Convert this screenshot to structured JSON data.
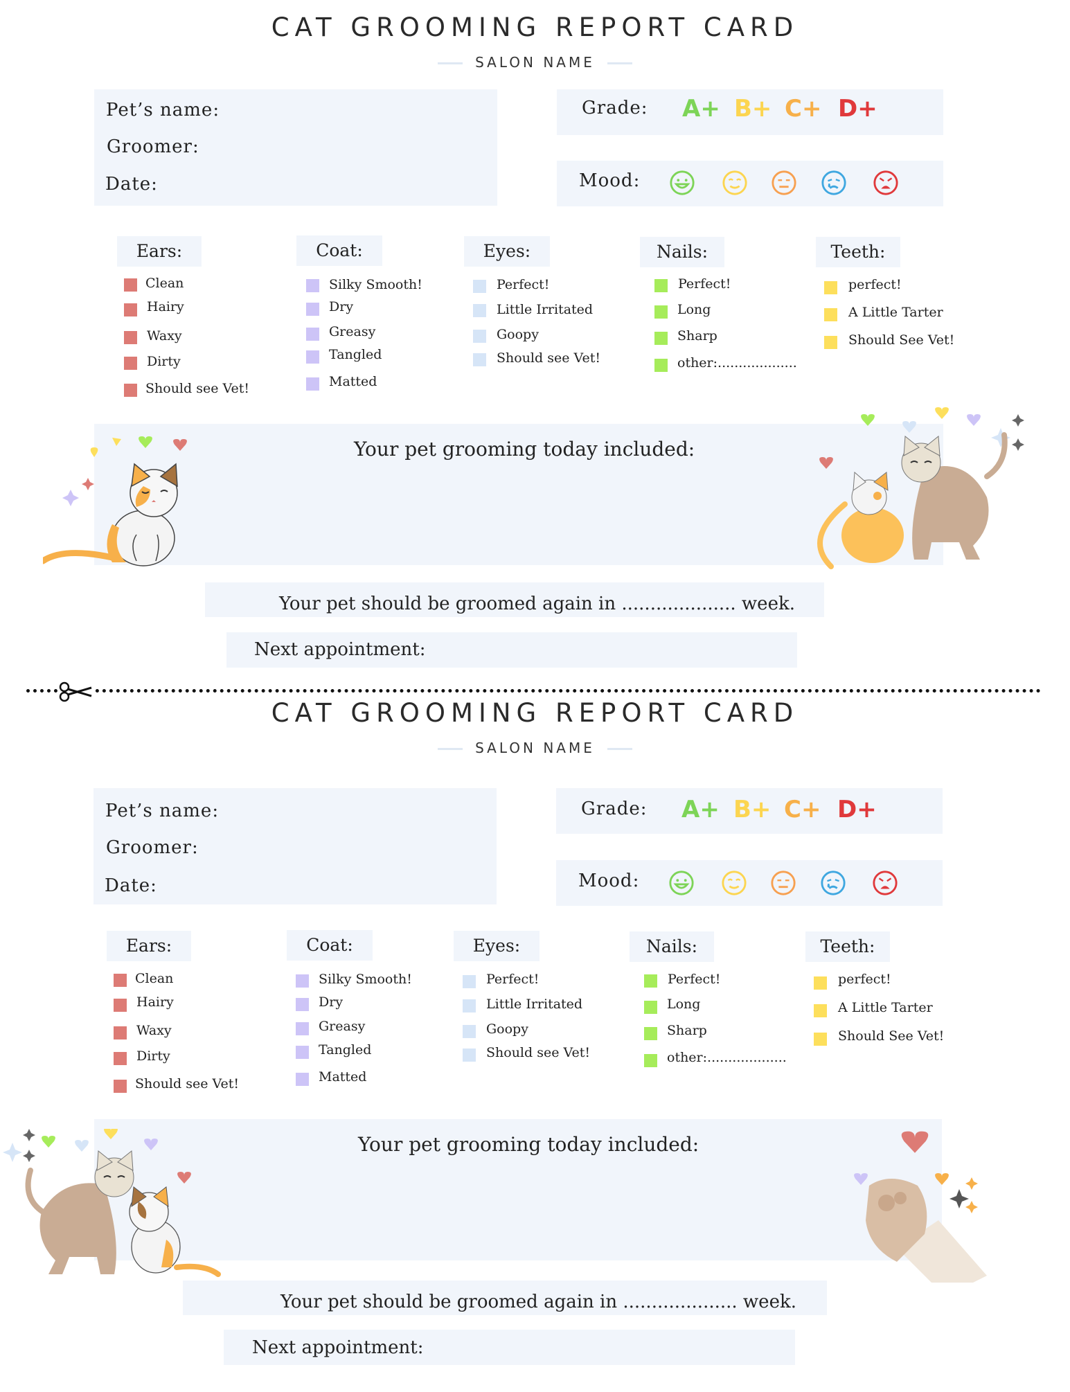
{
  "cards": [
    {
      "title": "CAT GROOMING REPORT CARD",
      "salon": "SALON NAME",
      "fields": {
        "pet_name": "Pet’s name:",
        "groomer": "Groomer:",
        "date": "Date:"
      },
      "grade_label": "Grade:",
      "grades": [
        "A+",
        "B+",
        "C+",
        "D+"
      ],
      "mood_label": "Mood:",
      "categories": {
        "ears": {
          "label": "Ears:",
          "options": [
            "Clean",
            "Hairy",
            "Waxy",
            "Dirty",
            "Should see Vet!"
          ]
        },
        "coat": {
          "label": "Coat:",
          "options": [
            "Silky Smooth!",
            "Dry",
            "Greasy",
            "Tangled",
            "Matted"
          ]
        },
        "eyes": {
          "label": "Eyes:",
          "options": [
            "Perfect!",
            "Little Irritated",
            "Goopy",
            "Should see Vet!"
          ]
        },
        "nails": {
          "label": "Nails:",
          "options": [
            "Perfect!",
            "Long",
            "Sharp",
            "other:..................."
          ]
        },
        "teeth": {
          "label": "Teeth:",
          "options": [
            "perfect!",
            "A Little Tarter",
            "Should See Vet!"
          ]
        }
      },
      "included": "Your pet grooming today included:",
      "groom_again": "Your pet should be groomed again in .................... week.",
      "next_appointment": "Next appointment:"
    },
    {
      "title": "CAT GROOMING REPORT CARD",
      "salon": "SALON NAME",
      "fields": {
        "pet_name": "Pet’s name:",
        "groomer": "Groomer:",
        "date": "Date:"
      },
      "grade_label": "Grade:",
      "grades": [
        "A+",
        "B+",
        "C+",
        "D+"
      ],
      "mood_label": "Mood:",
      "categories": {
        "ears": {
          "label": "Ears:",
          "options": [
            "Clean",
            "Hairy",
            "Waxy",
            "Dirty",
            "Should see Vet!"
          ]
        },
        "coat": {
          "label": "Coat:",
          "options": [
            "Silky Smooth!",
            "Dry",
            "Greasy",
            "Tangled",
            "Matted"
          ]
        },
        "eyes": {
          "label": "Eyes:",
          "options": [
            "Perfect!",
            "Little Irritated",
            "Goopy",
            "Should see Vet!"
          ]
        },
        "nails": {
          "label": "Nails:",
          "options": [
            "Perfect!",
            "Long",
            "Sharp",
            "other:..................."
          ]
        },
        "teeth": {
          "label": "Teeth:",
          "options": [
            "perfect!",
            "A Little Tarter",
            "Should See Vet!"
          ]
        }
      },
      "included": "Your pet grooming today included:",
      "groom_again": "Your pet should be groomed again in .................... week.",
      "next_appointment": "Next appointment:"
    }
  ],
  "colors": {
    "grade_a": "#7dd457",
    "grade_b": "#fcd550",
    "grade_c": "#f7b04a",
    "grade_d": "#e0393b",
    "ears": "#dd7b75",
    "coat": "#cdc4f7",
    "eyes": "#d6e5f7",
    "nails": "#a6ec5a",
    "teeth": "#fddf5c",
    "box": "#f1f5fb"
  },
  "icons": [
    "happy-face-icon",
    "neutral-face-icon",
    "meh-face-icon",
    "crying-face-icon",
    "angry-face-icon",
    "scissors-icon",
    "heart-icon",
    "sparkle-icon",
    "cat-illustration",
    "cat-paw-illustration"
  ]
}
